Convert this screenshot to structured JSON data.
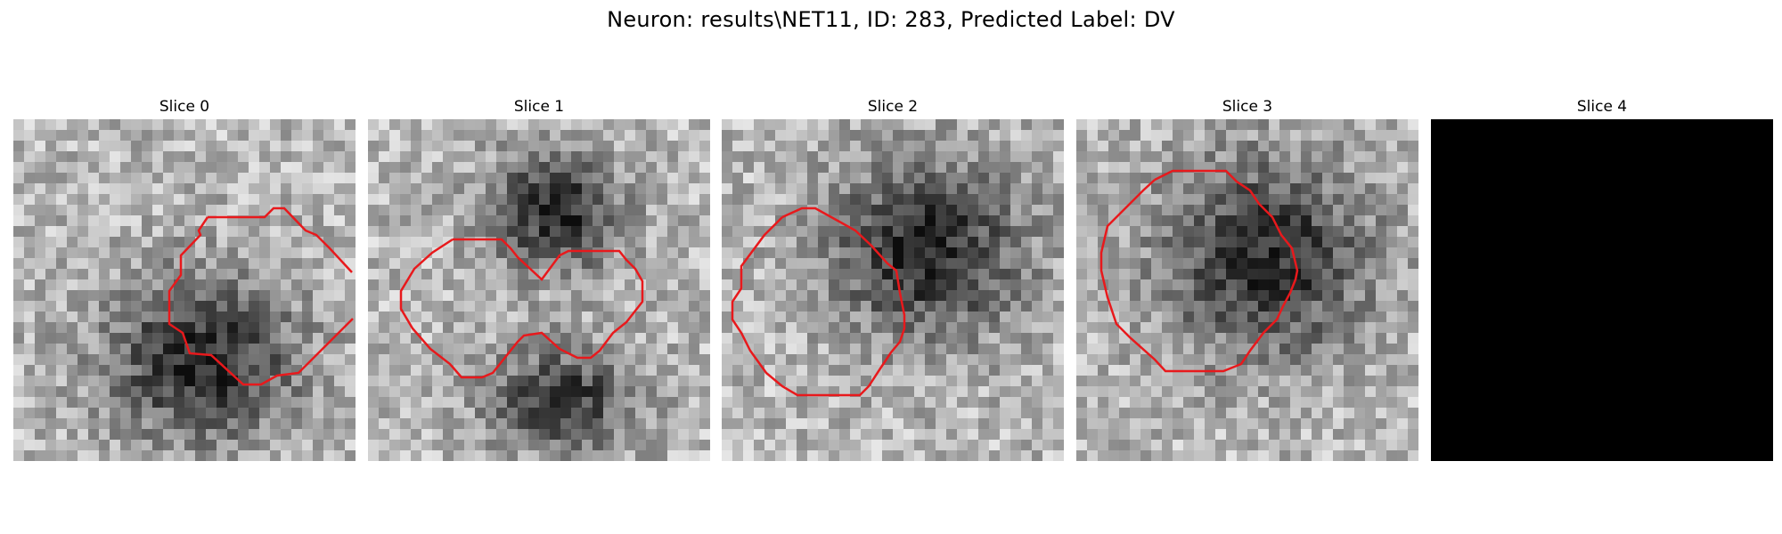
{
  "figure": {
    "title": "Neuron: results\\NET11, ID: 283, Predicted Label: DV"
  },
  "panels": [
    {
      "title": "Slice 0",
      "image": "grayscale-microscopy-slice",
      "blob": [
        0.55,
        0.7,
        0.32,
        0.28
      ],
      "blank": false,
      "contour_color": "#e8191c"
    },
    {
      "title": "Slice 1",
      "image": "grayscale-microscopy-slice",
      "blob": [
        0.55,
        0.27,
        0.22,
        0.2
      ],
      "blob2": [
        0.57,
        0.82,
        0.25,
        0.18
      ],
      "blank": false,
      "contour_color": "#e8191c"
    },
    {
      "title": "Slice 2",
      "image": "grayscale-microscopy-slice",
      "blob": [
        0.6,
        0.38,
        0.33,
        0.3
      ],
      "blank": false,
      "contour_color": "#e8191c"
    },
    {
      "title": "Slice 3",
      "image": "grayscale-microscopy-slice",
      "blob": [
        0.55,
        0.4,
        0.35,
        0.33
      ],
      "blank": false,
      "contour_color": "#e8191c"
    },
    {
      "title": "Slice 4",
      "image": "black-slice",
      "blank": true
    }
  ]
}
